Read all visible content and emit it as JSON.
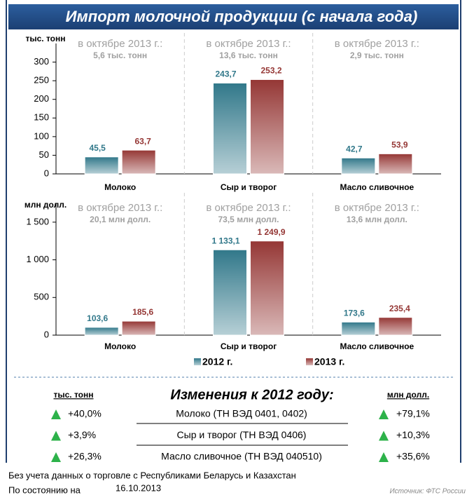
{
  "title": "Импорт молочной продукции (с начала года)",
  "chart_data": [
    {
      "type": "bar",
      "y_label": "тыс. тонн",
      "categories": [
        "Молоко",
        "Сыр и творог",
        "Масло сливочное"
      ],
      "annotations": [
        {
          "label": "в октябре 2013 г.:",
          "value": "5,6 тыс. тонн"
        },
        {
          "label": "в октябре 2013 г.:",
          "value": "13,6 тыс. тонн"
        },
        {
          "label": "в октябре 2013 г.:",
          "value": "2,9 тыс. тонн"
        }
      ],
      "series": [
        {
          "color": "#31788a",
          "values": [
            45.5,
            243.7,
            42.7
          ],
          "value_labels": [
            "45,5",
            "243,7",
            "42,7"
          ]
        },
        {
          "color": "#953735",
          "values": [
            63.7,
            253.2,
            53.9
          ],
          "value_labels": [
            "63,7",
            "253,2",
            "53,9"
          ]
        }
      ],
      "ylim": [
        0,
        350
      ],
      "yticks": [
        0,
        50,
        100,
        150,
        200,
        250,
        300
      ]
    },
    {
      "type": "bar",
      "y_label": "млн долл.",
      "categories": [
        "Молоко",
        "Сыр и творог",
        "Масло сливочное"
      ],
      "annotations": [
        {
          "label": "в октябре 2013 г.:",
          "value": "20,1 млн долл."
        },
        {
          "label": "в октябре 2013 г.:",
          "value": "73,5 млн долл."
        },
        {
          "label": "в октябре 2013 г.:",
          "value": "13,6 млн долл."
        }
      ],
      "series": [
        {
          "name": "2012 г.",
          "color": "#31788a",
          "values": [
            103.6,
            1133.1,
            173.6
          ],
          "value_labels": [
            "103,6",
            "1 133,1",
            "173,6"
          ]
        },
        {
          "name": "2013 г.",
          "color": "#953735",
          "values": [
            185.6,
            1249.9,
            235.4
          ],
          "value_labels": [
            "185,6",
            "1 249,9",
            "235,4"
          ]
        }
      ],
      "ylim": [
        0,
        1750
      ],
      "yticks": [
        0,
        500,
        {
          "value": 1000,
          "label": "1 000"
        },
        {
          "value": 1500,
          "label": "1 500"
        }
      ]
    }
  ],
  "changes": {
    "title": "Изменения к 2012 году:",
    "left_unit": "тыс. тонн",
    "right_unit": "млн долл.",
    "rows": [
      {
        "left": "+40,0%",
        "label": "Молоко (ТН ВЭД 0401, 0402)",
        "right": "+79,1%"
      },
      {
        "left": "+3,9%",
        "label": "Сыр и творог (ТН ВЭД 0406)",
        "right": "+10,3%"
      },
      {
        "left": "+26,3%",
        "label": "Масло сливочное (ТН ВЭД 040510)",
        "right": "+35,6%"
      }
    ]
  },
  "notes": {
    "exclusion": "Без учета данных о торговле с Республиками Беларусь и Казахстан",
    "as_of": "По состоянию на",
    "date": "16.10.2013",
    "source": "Источник: ФТС России"
  }
}
